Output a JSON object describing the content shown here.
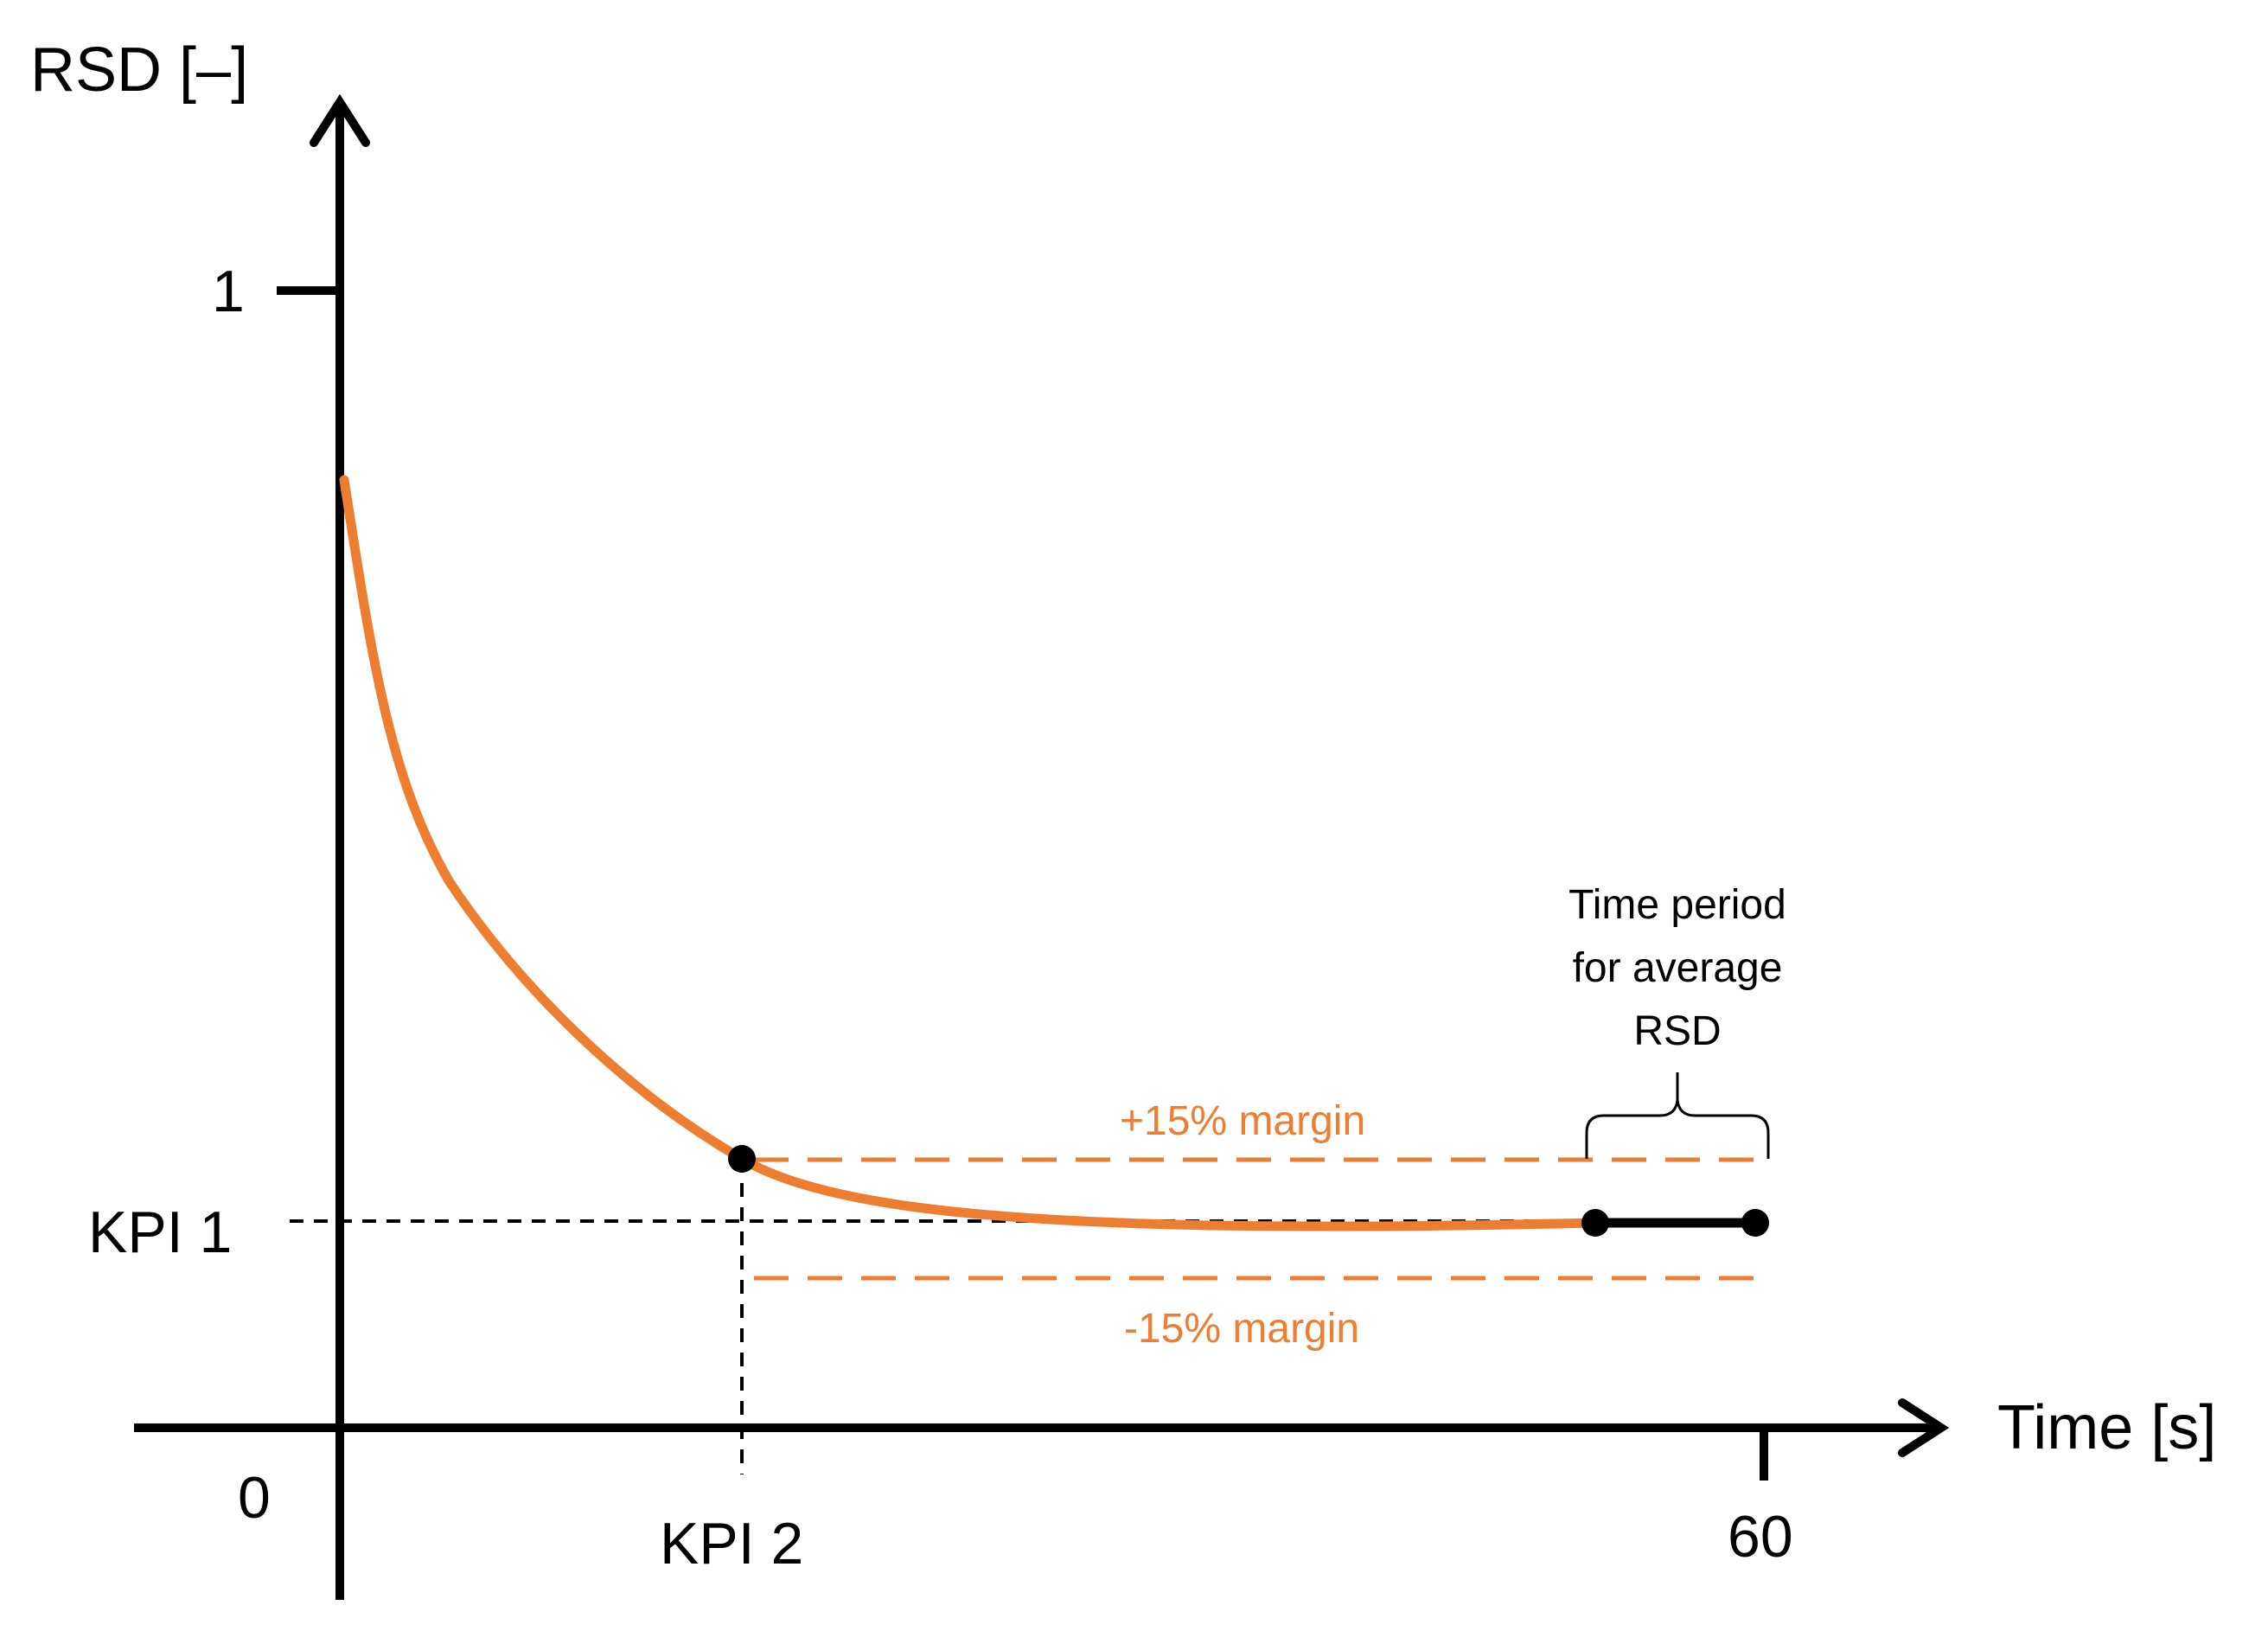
{
  "colors": {
    "curve": "#ED7D31",
    "axis": "#000000",
    "background": "#FFFFFF"
  },
  "axes": {
    "y_label": "RSD [–]",
    "x_label": "Time [s]",
    "origin_label": "0",
    "y_tick_label": "1",
    "x_tick_label": "60"
  },
  "markers": {
    "kpi1_label": "KPI 1",
    "kpi2_label": "KPI 2"
  },
  "margins": {
    "upper_label": "+15% margin",
    "lower_label": "-15% margin"
  },
  "averaging_window": {
    "label_lines": [
      "Time period",
      "for average",
      "RSD"
    ]
  },
  "chart_data": {
    "type": "line",
    "title": "",
    "xlabel": "Time [s]",
    "ylabel": "RSD [–]",
    "x_ticks": [
      "0",
      "60"
    ],
    "y_ticks": [
      "0",
      "1"
    ],
    "series": [
      {
        "name": "RSD",
        "description": "Exponentially decaying curve starting near the upper part of the axis and settling at the KPI 1 level"
      }
    ],
    "annotations": [
      "KPI 1",
      "KPI 2",
      "+15% margin",
      "-15% margin",
      "Time period for average RSD"
    ]
  }
}
